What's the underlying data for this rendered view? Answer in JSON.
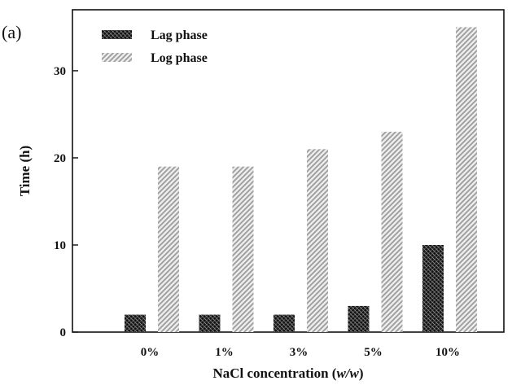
{
  "panel_label": "(a)",
  "chart_data": {
    "type": "bar",
    "title": "",
    "xlabel": "NaCl concentration (",
    "xlabel_italic": "w/w",
    "xlabel_suffix": ")",
    "ylabel": "Time (h)",
    "categories": [
      "0%",
      "1%",
      "3%",
      "5%",
      "10%"
    ],
    "series": [
      {
        "name": "Lag phase",
        "values": [
          2,
          2,
          2,
          3,
          10
        ],
        "color": "#2b2b2b",
        "pattern": "dark-crosshatch"
      },
      {
        "name": "Log phase",
        "values": [
          19,
          19,
          21,
          23,
          35
        ],
        "color": "#bdbdbd",
        "pattern": "light-diagonal"
      }
    ],
    "ylim": [
      0,
      37
    ],
    "yticks": [
      0,
      10,
      20,
      30
    ],
    "grid": false,
    "legend_position": "top-left"
  }
}
